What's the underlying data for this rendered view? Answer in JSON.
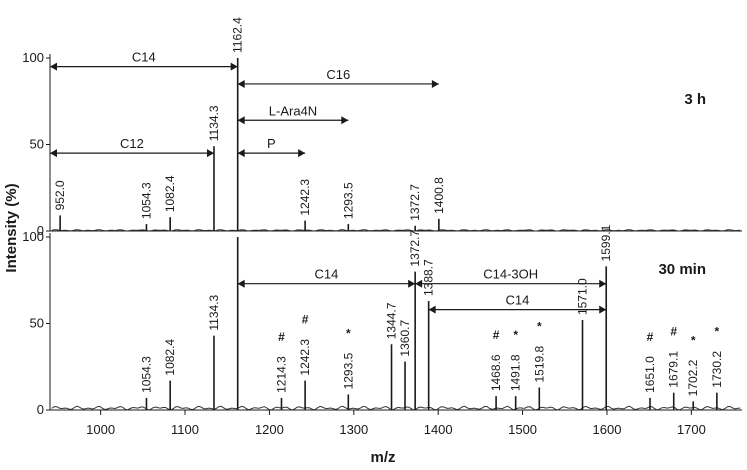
{
  "chart_data": {
    "type": "line",
    "x_axis": {
      "label": "m/z",
      "range": [
        940,
        1760
      ],
      "ticks": [
        1000,
        1100,
        1200,
        1300,
        1400,
        1500,
        1600,
        1700
      ]
    },
    "y_axis": {
      "label": "Intensity (%)",
      "range": [
        0,
        100
      ],
      "ticks": [
        0,
        50,
        100
      ]
    },
    "panels": [
      {
        "name": "3 h",
        "label": "3 h",
        "peaks": [
          {
            "mz": 952.0,
            "intensity": 9,
            "label": "952.0"
          },
          {
            "mz": 1054.3,
            "intensity": 4,
            "label": "1054.3"
          },
          {
            "mz": 1082.4,
            "intensity": 8,
            "label": "1082.4"
          },
          {
            "mz": 1134.3,
            "intensity": 49,
            "label": "1134.3"
          },
          {
            "mz": 1162.4,
            "intensity": 100,
            "label": "1162.4"
          },
          {
            "mz": 1242.3,
            "intensity": 6,
            "label": "1242.3"
          },
          {
            "mz": 1293.5,
            "intensity": 4,
            "label": "1293.5"
          },
          {
            "mz": 1372.7,
            "intensity": 3,
            "label": "1372.7"
          },
          {
            "mz": 1400.8,
            "intensity": 7,
            "label": "1400.8"
          }
        ],
        "annotations": [
          {
            "label": "C14",
            "from": 940,
            "to": 1162.4,
            "y": 95
          },
          {
            "label": "C16",
            "from": 1162.4,
            "to": 1400.8,
            "y": 85
          },
          {
            "label": "L-Ara4N",
            "from": 1162.4,
            "to": 1293.5,
            "y": 64
          },
          {
            "label": "C12",
            "from": 940,
            "to": 1134.3,
            "y": 45
          },
          {
            "label": "P",
            "from": 1162.4,
            "to": 1242.3,
            "y": 45
          }
        ]
      },
      {
        "name": "30 min",
        "label": "30 min",
        "peaks": [
          {
            "mz": 1054.3,
            "intensity": 7,
            "label": "1054.3",
            "marker": ""
          },
          {
            "mz": 1082.4,
            "intensity": 17,
            "label": "1082.4",
            "marker": ""
          },
          {
            "mz": 1134.3,
            "intensity": 43,
            "label": "1134.3",
            "marker": ""
          },
          {
            "mz": 1162.4,
            "intensity": 100,
            "label": "",
            "marker": ""
          },
          {
            "mz": 1214.3,
            "intensity": 7,
            "label": "1214.3",
            "marker": "#"
          },
          {
            "mz": 1242.3,
            "intensity": 17,
            "label": "1242.3",
            "marker": "#"
          },
          {
            "mz": 1293.5,
            "intensity": 9,
            "label": "1293.5",
            "marker": "*"
          },
          {
            "mz": 1344.7,
            "intensity": 38,
            "label": "1344.7",
            "marker": ""
          },
          {
            "mz": 1360.7,
            "intensity": 28,
            "label": "1360.7",
            "marker": ""
          },
          {
            "mz": 1372.7,
            "intensity": 80,
            "label": "1372.7",
            "marker": ""
          },
          {
            "mz": 1388.7,
            "intensity": 63,
            "label": "1388.7",
            "marker": ""
          },
          {
            "mz": 1468.6,
            "intensity": 8,
            "label": "1468.6",
            "marker": "#"
          },
          {
            "mz": 1491.8,
            "intensity": 8,
            "label": "1491.8",
            "marker": "*"
          },
          {
            "mz": 1519.8,
            "intensity": 13,
            "label": "1519.8",
            "marker": "*"
          },
          {
            "mz": 1571.0,
            "intensity": 52,
            "label": "1571.0",
            "marker": ""
          },
          {
            "mz": 1599.1,
            "intensity": 83,
            "label": "1599.1",
            "marker": ""
          },
          {
            "mz": 1651.0,
            "intensity": 7,
            "label": "1651.0",
            "marker": "#"
          },
          {
            "mz": 1679.1,
            "intensity": 10,
            "label": "1679.1",
            "marker": "#"
          },
          {
            "mz": 1702.2,
            "intensity": 5,
            "label": "1702.2",
            "marker": "*"
          },
          {
            "mz": 1730.2,
            "intensity": 10,
            "label": "1730.2",
            "marker": "*"
          }
        ],
        "annotations": [
          {
            "label": "C14",
            "from": 1162.4,
            "to": 1372.7,
            "y": 73
          },
          {
            "label": "C14-3OH",
            "from": 1372.7,
            "to": 1599.1,
            "y": 73
          },
          {
            "label": "C14",
            "from": 1388.7,
            "to": 1599.1,
            "y": 58
          }
        ]
      }
    ]
  }
}
